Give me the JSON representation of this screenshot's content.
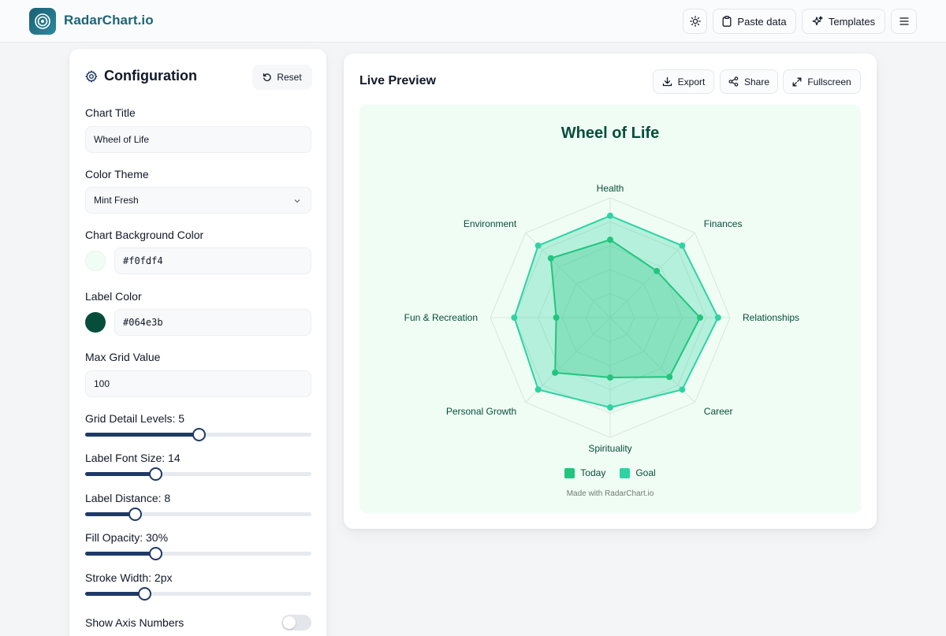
{
  "app": {
    "brand": "RadarChart.io"
  },
  "topbar": {
    "paste_label": "Paste data",
    "templates_label": "Templates"
  },
  "config": {
    "title": "Configuration",
    "reset_label": "Reset",
    "chart_title_label": "Chart Title",
    "chart_title_value": "Wheel of Life",
    "color_theme_label": "Color Theme",
    "color_theme_value": "Mint Fresh",
    "bg_color_label": "Chart Background Color",
    "bg_color_value": "#f0fdf4",
    "label_color_label": "Label Color",
    "label_color_value": "#064e3b",
    "max_grid_label": "Max Grid Value",
    "max_grid_value": "100",
    "sliders": [
      {
        "label": "Grid Detail Levels: 5",
        "fraction": 0.5
      },
      {
        "label": "Label Font Size: 14",
        "fraction": 0.31
      },
      {
        "label": "Label Distance: 8",
        "fraction": 0.22
      },
      {
        "label": "Fill Opacity: 30%",
        "fraction": 0.31
      },
      {
        "label": "Stroke Width: 2px",
        "fraction": 0.26
      }
    ],
    "show_axis_label": "Show Axis Numbers",
    "show_axis_value": false
  },
  "preview": {
    "title": "Live Preview",
    "export_label": "Export",
    "share_label": "Share",
    "fullscreen_label": "Fullscreen",
    "watermark": "Made with RadarChart.io"
  },
  "colors": {
    "brand": "#1c6478",
    "chart_bg": "#f0fdf4",
    "label": "#064e3b",
    "today": "#22c57e",
    "goal": "#2ed3a4",
    "slider": "#1f3a68"
  },
  "chart_data": {
    "type": "radar",
    "title": "Wheel of Life",
    "axes": [
      "Health",
      "Finances",
      "Relationships",
      "Career",
      "Spirituality",
      "Personal Growth",
      "Fun & Recreation",
      "Environment"
    ],
    "max": 100,
    "grid_levels": 5,
    "series": [
      {
        "name": "Today",
        "values": [
          65,
          55,
          75,
          70,
          50,
          65,
          45,
          70
        ]
      },
      {
        "name": "Goal",
        "values": [
          85,
          85,
          90,
          85,
          75,
          85,
          80,
          85
        ]
      }
    ],
    "legend_position": "bottom"
  }
}
